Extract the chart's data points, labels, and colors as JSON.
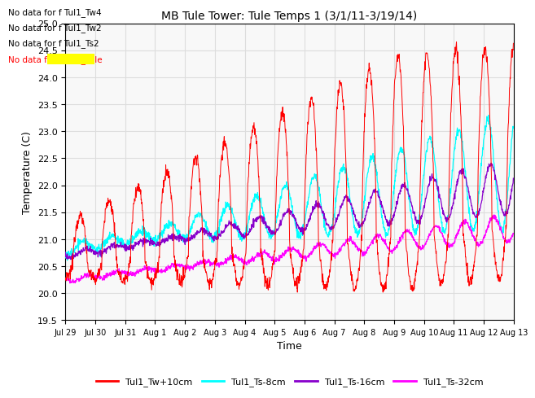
{
  "title": "MB Tule Tower: Tule Temps 1 (3/1/11-3/19/14)",
  "xlabel": "Time",
  "ylabel": "Temperature (C)",
  "ylim": [
    19.5,
    25.0
  ],
  "yticks": [
    19.5,
    20.0,
    20.5,
    21.0,
    21.5,
    22.0,
    22.5,
    23.0,
    23.5,
    24.0,
    24.5,
    25.0
  ],
  "xtick_labels": [
    "Jul 29",
    "Jul 30",
    "Jul 31",
    "Aug 1",
    "Aug 2",
    "Aug 3",
    "Aug 4",
    "Aug 5",
    "Aug 6",
    "Aug 7",
    "Aug 8",
    "Aug 9",
    "Aug 10",
    "Aug 11",
    "Aug 12",
    "Aug 13"
  ],
  "colors": {
    "Tw": "#ff0000",
    "Ts8": "#00ffff",
    "Ts16": "#8800cc",
    "Ts32": "#ff00ff"
  },
  "no_data_texts": [
    "No data for f Tul1_Tw4",
    "No data for f Tul1_Tw2",
    "No data for f Tul1_Ts2",
    "No data for f Tul1_Tule"
  ],
  "legend_labels": [
    "Tul1_Tw+10cm",
    "Tul1_Ts-8cm",
    "Tul1_Ts-16cm",
    "Tul1_Ts-32cm"
  ],
  "grid_color": "#dddddd",
  "plot_bg": "#f8f8f8"
}
